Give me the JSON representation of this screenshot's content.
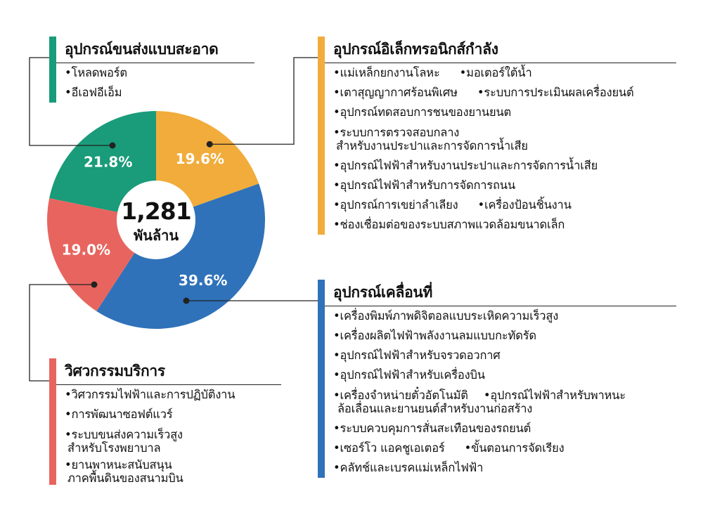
{
  "colors": {
    "clean_transport": "#1a9b7a",
    "power_electronics": "#f2ac3b",
    "mobility": "#2f72b9",
    "service": "#e8655f"
  },
  "center": {
    "value": "1,281",
    "unit": "พันล้าน"
  },
  "chart_data": {
    "type": "pie",
    "donut": true,
    "slices": [
      {
        "key": "power_electronics",
        "label": "อุปกรณ์อิเล็กทรอนิกส์กำลัง",
        "value": 19.6,
        "value_label": "19.6%"
      },
      {
        "key": "mobility",
        "label": "อุปกรณ์เคลื่อนที่",
        "value": 39.6,
        "value_label": "39.6%"
      },
      {
        "key": "service",
        "label": "วิศวกรรมบริการ",
        "value": 19.0,
        "value_label": "19.0%"
      },
      {
        "key": "clean_transport",
        "label": "อุปกรณ์ขนส่งแบบสะอาด",
        "value": 21.8,
        "value_label": "21.8%"
      }
    ],
    "total_label": "1,281 พันล้าน"
  },
  "sections": {
    "clean_transport": {
      "title": "อุปกรณ์ขนส่งแบบสะอาด",
      "items": [
        "•โหลดพอร์ต",
        "•อีเอฟอีเอ็ม"
      ]
    },
    "power_electronics": {
      "title": "อุปกรณ์อิเล็กทรอนิกส์กำลัง",
      "items": [
        [
          "•แม่เหล็กยกงานโลหะ",
          "•มอเตอร์ใต้น้ำ"
        ],
        [
          "•เตาสุญญากาศร้อนพิเศษ",
          "•ระบบการประเมินผลเครื่องยนต์"
        ],
        "•อุปกรณ์ทดสอบการชนของยานยนต",
        [
          "•ระบบการตรวจสอบกลาง",
          "สำหรับงานประปาและการจัดการน้ำเสีย"
        ],
        "•อุปกรณ์ไฟฟ้าสำหรับงานประปาและการจัดการน้ำเสีย",
        "•อุปกรณ์ไฟฟ้าสำหรับการจัดการถนน",
        [
          "•อุปกรณ์การเขย่าลำเลียง",
          "•เครื่องป้อนชิ้นงาน"
        ],
        "•ช่องเชื่อมต่อของระบบสภาพแวดล้อมขนาดเล็ก"
      ]
    },
    "mobility": {
      "title": "อุปกรณ์เคลื่อนที่",
      "items": [
        "•เครื่องพิมพ์ภาพดิจิตอลแบบระเหิดความเร็วสูง",
        "•เครื่องผลิตไฟฟ้าพลังงานลมแบบกะทัดรัด",
        "•อุปกรณ์ไฟฟ้าสำหรับจรวดอวกาศ",
        "•อุปกรณ์ไฟฟ้าสำหรับเครื่องบิน",
        [
          "•เครื่องจำหน่ายตั๋วอัตโนมัติ",
          "•อุปกรณ์ไฟฟ้าสำหรับพาหนะ",
          "ล้อเลื่อนและยานยนต์สำหรับงานก่อสร้าง"
        ],
        "•ระบบควบคุมการสั่นสะเทือนของรถยนต์",
        [
          "•เซอร์โว แอคชูเอเตอร์",
          "•ขั้นตอนการจัดเรียง"
        ],
        "•คลัทช์และเบรคแม่เหล็กไฟฟ้า"
      ]
    },
    "service": {
      "title": "วิศวกรรมบริการ",
      "items": [
        "•วิศวกรรมไฟฟ้าและการปฏิบัติงาน",
        "•การพัฒนาซอฟต์แวร์",
        [
          "•ระบบขนส่งความเร็วสูง",
          "สำหรับโรงพยาบาล"
        ],
        [
          "•ยานพาหนะสนับสนุน",
          "ภาคพื้นดินของสนามบิน"
        ]
      ]
    }
  }
}
